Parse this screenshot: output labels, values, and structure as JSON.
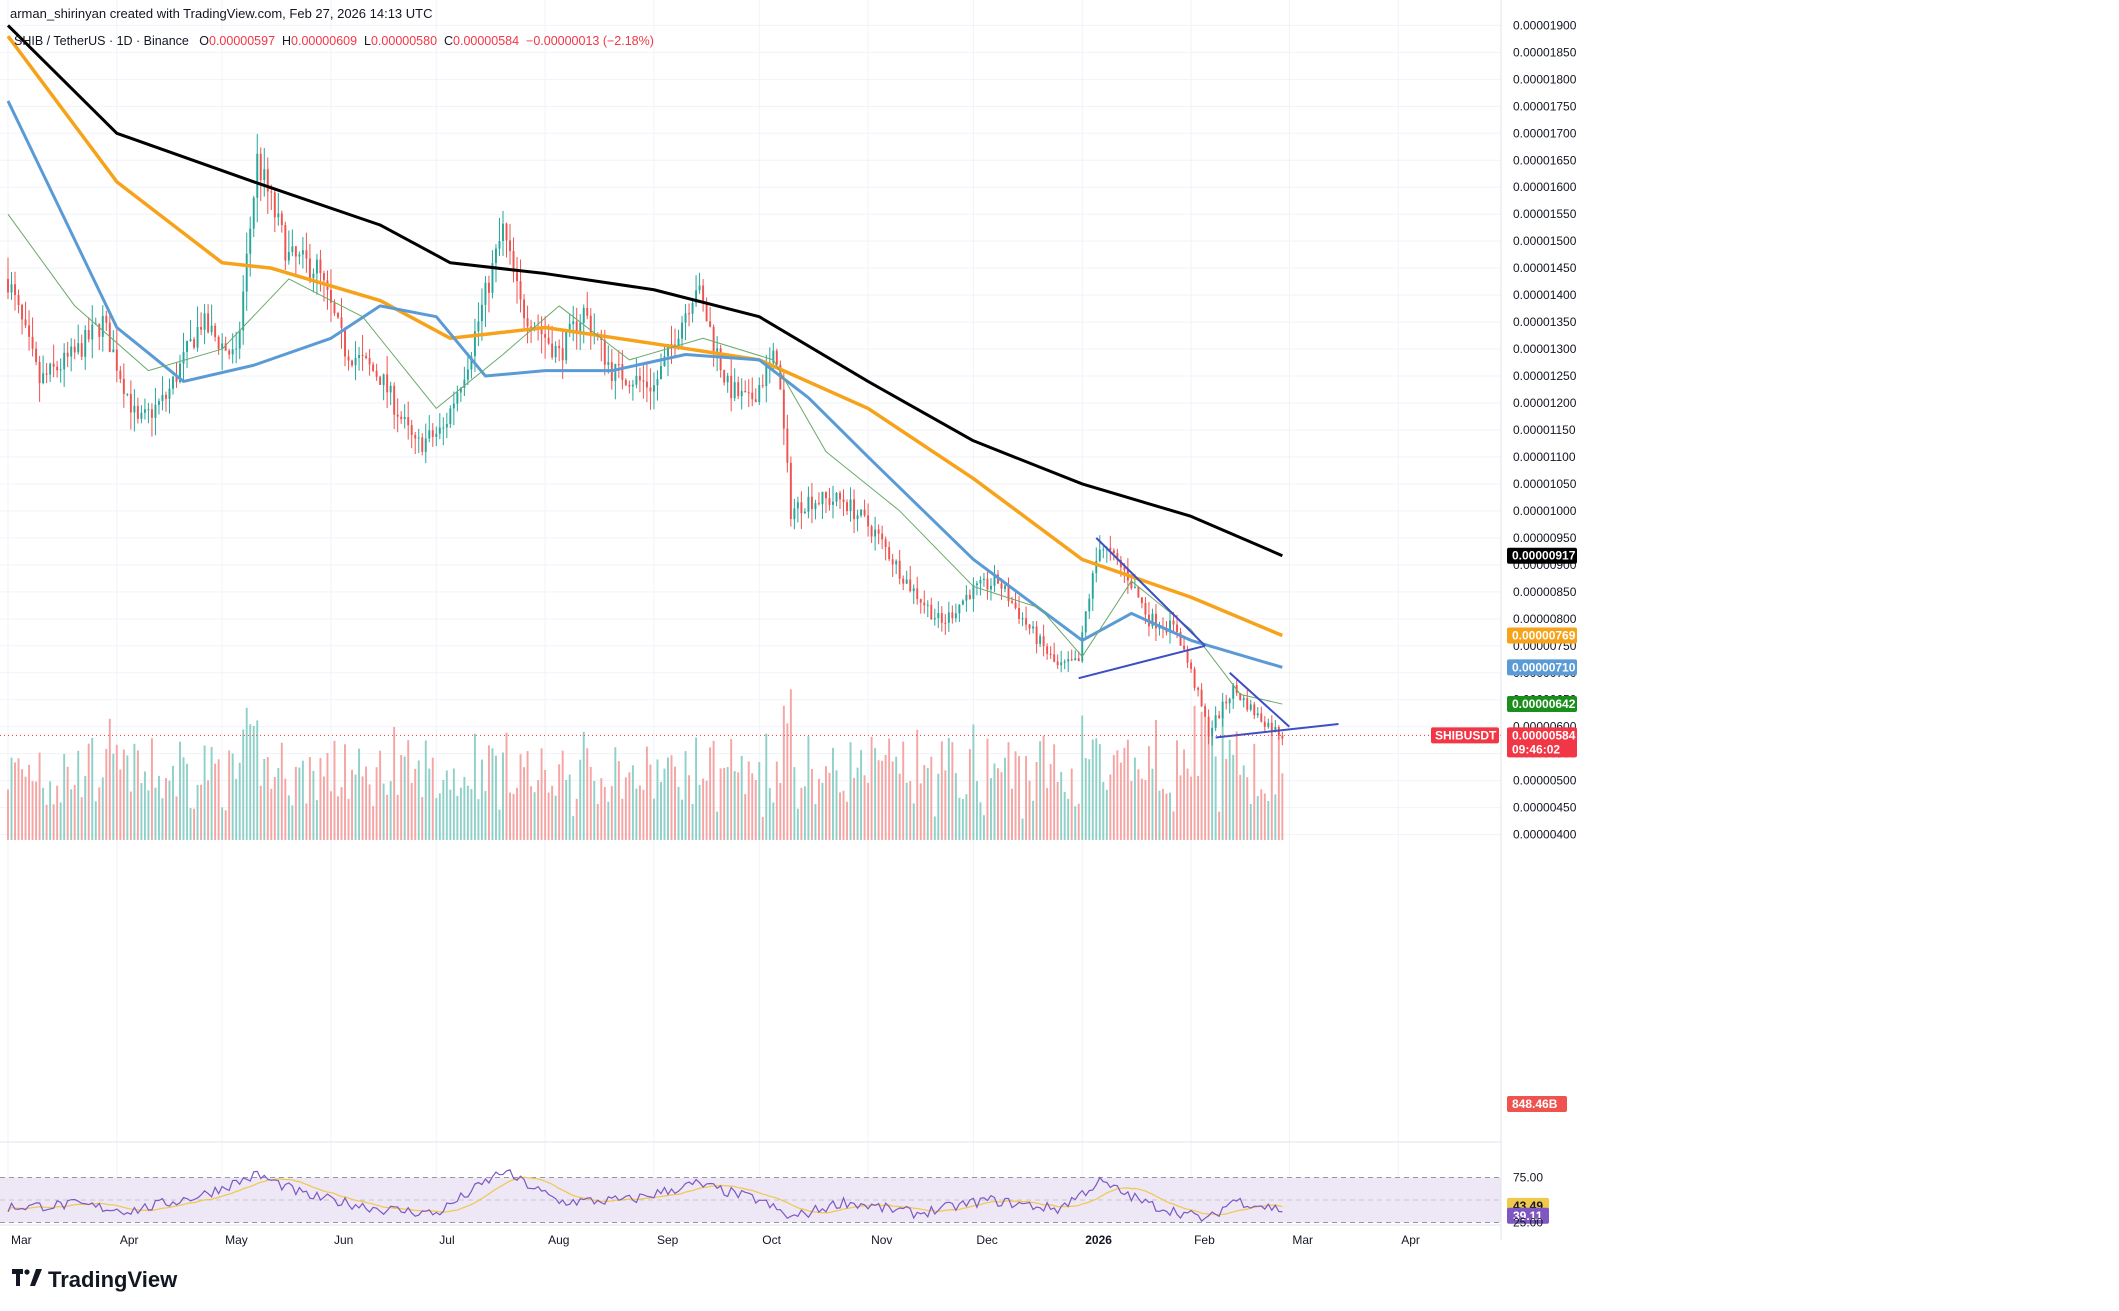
{
  "header": {
    "attribution": "arman_shirinyan created with TradingView.com, Feb 27, 2026 14:13 UTC"
  },
  "legend": {
    "symbol": "SHIB / TetherUS · 1D · Binance",
    "open_label": "O",
    "open": "0.00000597",
    "high_label": "H",
    "high": "0.00000609",
    "low_label": "L",
    "low": "0.00000580",
    "close_label": "C",
    "close": "0.00000584",
    "change": "−0.00000013 (−2.18%)"
  },
  "brand": {
    "name": "TradingView",
    "icon": "tradingview-logo-icon"
  },
  "colors": {
    "up": "#26a69a",
    "down": "#ef5350",
    "up_vol": "#8fd0c8",
    "down_vol": "#f5a5a3",
    "ma200": "#000000",
    "ma100": "#f7a21b",
    "ma50": "#5b9bd5",
    "ma20": "#6aa96a",
    "trendline": "#3c4fc4",
    "rsi": "#7e57c2",
    "rsi_ma": "#f0c84b",
    "rsi_band": "#ede7f6"
  },
  "chart_data": {
    "type": "candlestick",
    "symbol": "SHIBUSDT",
    "timeframe": "1D",
    "exchange": "Binance",
    "x_range": [
      "2025-03-01",
      "2026-04-30"
    ],
    "ylim": [
      3.9e-06,
      1.91e-05
    ],
    "y_ticks": [
      "0.00001900",
      "0.00001850",
      "0.00001800",
      "0.00001750",
      "0.00001700",
      "0.00001650",
      "0.00001600",
      "0.00001550",
      "0.00001500",
      "0.00001450",
      "0.00001400",
      "0.00001350",
      "0.00001300",
      "0.00001250",
      "0.00001200",
      "0.00001150",
      "0.00001100",
      "0.00001050",
      "0.00001000",
      "0.00000950",
      "0.00000900",
      "0.00000850",
      "0.00000800",
      "0.00000750",
      "0.00000700",
      "0.00000650",
      "0.00000600",
      "0.00000550",
      "0.00000500",
      "0.00000450",
      "0.00000400"
    ],
    "x_ticks": [
      "Mar",
      "Apr",
      "May",
      "Jun",
      "Jul",
      "Aug",
      "Sep",
      "Oct",
      "Nov",
      "Dec",
      "2026",
      "Feb",
      "Mar",
      "Apr"
    ],
    "price_path": [
      [
        "2025-03-01",
        14.3
      ],
      [
        "2025-03-10",
        12.4
      ],
      [
        "2025-03-20",
        12.9
      ],
      [
        "2025-03-28",
        13.5
      ],
      [
        "2025-04-07",
        11.6
      ],
      [
        "2025-04-15",
        12.1
      ],
      [
        "2025-04-25",
        13.5
      ],
      [
        "2025-05-05",
        12.8
      ],
      [
        "2025-05-11",
        16.5
      ],
      [
        "2025-05-20",
        14.7
      ],
      [
        "2025-05-28",
        14.5
      ],
      [
        "2025-06-05",
        13.0
      ],
      [
        "2025-06-15",
        12.5
      ],
      [
        "2025-06-25",
        11.2
      ],
      [
        "2025-07-03",
        11.5
      ],
      [
        "2025-07-10",
        12.8
      ],
      [
        "2025-07-20",
        15.2
      ],
      [
        "2025-07-25",
        13.8
      ],
      [
        "2025-08-05",
        12.9
      ],
      [
        "2025-08-12",
        13.7
      ],
      [
        "2025-08-20",
        12.6
      ],
      [
        "2025-09-01",
        12.3
      ],
      [
        "2025-09-05",
        12.9
      ],
      [
        "2025-09-13",
        14.2
      ],
      [
        "2025-09-22",
        12.3
      ],
      [
        "2025-09-28",
        12.0
      ],
      [
        "2025-10-06",
        12.9
      ],
      [
        "2025-10-10",
        10.0
      ],
      [
        "2025-10-15",
        10.2
      ],
      [
        "2025-10-25",
        10.2
      ],
      [
        "2025-11-03",
        9.6
      ],
      [
        "2025-11-13",
        8.6
      ],
      [
        "2025-11-22",
        7.9
      ],
      [
        "2025-11-30",
        8.5
      ],
      [
        "2025-12-08",
        8.7
      ],
      [
        "2025-12-15",
        8.0
      ],
      [
        "2025-12-25",
        7.1
      ],
      [
        "2025-12-31",
        7.2
      ],
      [
        "2026-01-02",
        8.1
      ],
      [
        "2026-01-06",
        9.4
      ],
      [
        "2026-01-14",
        8.8
      ],
      [
        "2026-01-20",
        8.0
      ],
      [
        "2026-01-28",
        7.8
      ],
      [
        "2026-02-02",
        6.8
      ],
      [
        "2026-02-06",
        5.9
      ],
      [
        "2026-02-13",
        6.7
      ],
      [
        "2026-02-20",
        6.2
      ],
      [
        "2026-02-27",
        5.84
      ]
    ],
    "moving_averages": [
      {
        "color": "#000000",
        "last": "0.00000917",
        "path": [
          [
            "2025-03-01",
            19.0
          ],
          [
            "2025-04-01",
            17.0
          ],
          [
            "2025-05-10",
            16.1
          ],
          [
            "2025-06-15",
            15.3
          ],
          [
            "2025-07-05",
            14.6
          ],
          [
            "2025-08-01",
            14.4
          ],
          [
            "2025-09-01",
            14.1
          ],
          [
            "2025-10-01",
            13.6
          ],
          [
            "2025-11-01",
            12.4
          ],
          [
            "2025-12-01",
            11.3
          ],
          [
            "2026-01-01",
            10.5
          ],
          [
            "2026-02-01",
            9.9
          ],
          [
            "2026-02-27",
            9.17
          ]
        ]
      },
      {
        "color": "#f7a21b",
        "last": "0.00000769",
        "path": [
          [
            "2025-03-01",
            18.8
          ],
          [
            "2025-04-01",
            16.1
          ],
          [
            "2025-05-01",
            14.6
          ],
          [
            "2025-05-15",
            14.5
          ],
          [
            "2025-06-15",
            13.9
          ],
          [
            "2025-07-05",
            13.2
          ],
          [
            "2025-08-01",
            13.4
          ],
          [
            "2025-09-01",
            13.1
          ],
          [
            "2025-10-01",
            12.8
          ],
          [
            "2025-11-01",
            11.9
          ],
          [
            "2025-12-01",
            10.6
          ],
          [
            "2026-01-01",
            9.1
          ],
          [
            "2026-02-01",
            8.4
          ],
          [
            "2026-02-27",
            7.69
          ]
        ]
      },
      {
        "color": "#5b9bd5",
        "last": "0.00000710",
        "path": [
          [
            "2025-03-01",
            17.6
          ],
          [
            "2025-04-01",
            13.4
          ],
          [
            "2025-04-20",
            12.4
          ],
          [
            "2025-05-10",
            12.7
          ],
          [
            "2025-06-01",
            13.2
          ],
          [
            "2025-06-15",
            13.8
          ],
          [
            "2025-07-01",
            13.6
          ],
          [
            "2025-07-15",
            12.5
          ],
          [
            "2025-08-01",
            12.6
          ],
          [
            "2025-08-20",
            12.6
          ],
          [
            "2025-09-10",
            12.9
          ],
          [
            "2025-10-01",
            12.8
          ],
          [
            "2025-10-15",
            12.1
          ],
          [
            "2025-11-01",
            11.0
          ],
          [
            "2025-12-01",
            9.1
          ],
          [
            "2026-01-01",
            7.6
          ],
          [
            "2026-01-15",
            8.1
          ],
          [
            "2026-02-01",
            7.6
          ],
          [
            "2026-02-27",
            7.1
          ]
        ]
      },
      {
        "color": "#6aa96a",
        "last": "",
        "path": [
          [
            "2025-03-01",
            15.5
          ],
          [
            "2025-03-20",
            13.8
          ],
          [
            "2025-04-10",
            12.6
          ],
          [
            "2025-05-01",
            13.0
          ],
          [
            "2025-05-20",
            14.3
          ],
          [
            "2025-06-10",
            13.6
          ],
          [
            "2025-07-01",
            11.9
          ],
          [
            "2025-07-20",
            12.9
          ],
          [
            "2025-08-05",
            13.8
          ],
          [
            "2025-08-25",
            12.8
          ],
          [
            "2025-09-15",
            13.2
          ],
          [
            "2025-10-05",
            12.8
          ],
          [
            "2025-10-20",
            11.1
          ],
          [
            "2025-11-10",
            10.0
          ],
          [
            "2025-12-01",
            8.6
          ],
          [
            "2025-12-20",
            8.2
          ],
          [
            "2026-01-01",
            7.3
          ],
          [
            "2026-01-15",
            8.7
          ],
          [
            "2026-02-01",
            7.8
          ],
          [
            "2026-02-15",
            6.6
          ],
          [
            "2026-02-27",
            6.42
          ]
        ]
      }
    ],
    "trendlines": [
      [
        [
          "2026-01-05",
          9.5
        ],
        [
          "2026-02-05",
          7.5
        ]
      ],
      [
        [
          "2025-12-31",
          6.9
        ],
        [
          "2026-02-05",
          7.5
        ]
      ],
      [
        [
          "2026-02-12",
          7.0
        ],
        [
          "2026-03-01",
          6.0
        ]
      ],
      [
        [
          "2026-02-08",
          5.8
        ],
        [
          "2026-03-15",
          6.05
        ]
      ]
    ],
    "price_labels": [
      {
        "value": "0.00000917",
        "color": "#000000",
        "price": 9.17
      },
      {
        "value": "0.00000769",
        "color": "#f7a21b",
        "price": 7.69
      },
      {
        "value": "0.00000710",
        "color": "#5b9bd5",
        "price": 7.1
      },
      {
        "value": "0.00000642",
        "color": "#1b8f1b",
        "price": 6.42
      },
      {
        "value": "0.00000584",
        "color": "#f23645",
        "price": 5.84
      }
    ],
    "symbol_badge": "SHIBUSDT",
    "countdown": "09:46:02",
    "volume_last": "848.46B",
    "rsi": {
      "upper": "75.00",
      "lower": "25.00",
      "value": "39.11",
      "ma_value": "43.49",
      "path": [
        [
          "2025-03-01",
          42
        ],
        [
          "2025-03-20",
          45
        ],
        [
          "2025-04-05",
          38
        ],
        [
          "2025-04-25",
          55
        ],
        [
          "2025-05-11",
          78
        ],
        [
          "2025-05-25",
          55
        ],
        [
          "2025-06-15",
          40
        ],
        [
          "2025-07-01",
          35
        ],
        [
          "2025-07-20",
          82
        ],
        [
          "2025-08-05",
          48
        ],
        [
          "2025-08-25",
          50
        ],
        [
          "2025-09-13",
          68
        ],
        [
          "2025-10-01",
          50
        ],
        [
          "2025-10-10",
          30
        ],
        [
          "2025-10-25",
          48
        ],
        [
          "2025-11-15",
          35
        ],
        [
          "2025-12-05",
          50
        ],
        [
          "2025-12-25",
          40
        ],
        [
          "2026-01-06",
          70
        ],
        [
          "2026-01-20",
          45
        ],
        [
          "2026-02-06",
          28
        ],
        [
          "2026-02-13",
          50
        ],
        [
          "2026-02-27",
          39.11
        ]
      ]
    }
  }
}
